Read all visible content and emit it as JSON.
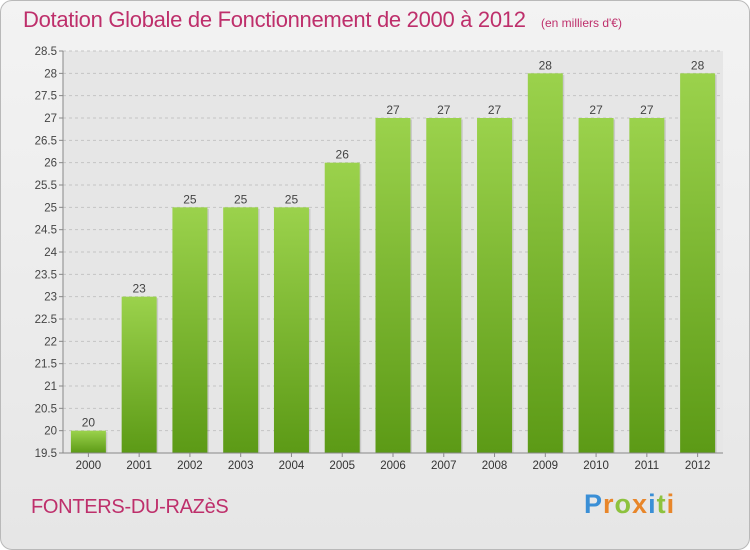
{
  "header": {
    "title": "Dotation Globale de Fonctionnement de 2000 à 2012",
    "unit": "(en milliers d'€)"
  },
  "footer": {
    "city": "FONTERS-DU-RAZèS",
    "logo": {
      "letters": [
        "P",
        "r",
        "o",
        "x",
        "i",
        "t",
        "i"
      ],
      "colors": [
        "#3a8fd6",
        "#e8862a",
        "#8dc23e",
        "#e8862a",
        "#3a8fd6",
        "#8dc23e",
        "#e8862a"
      ]
    }
  },
  "chart_data": {
    "type": "bar",
    "categories": [
      "2000",
      "2001",
      "2002",
      "2003",
      "2004",
      "2005",
      "2006",
      "2007",
      "2008",
      "2009",
      "2010",
      "2011",
      "2012"
    ],
    "values": [
      20,
      23,
      25,
      25,
      25,
      26,
      27,
      27,
      27,
      28,
      27,
      27,
      28
    ],
    "data_labels": [
      "20",
      "23",
      "25",
      "25",
      "25",
      "26",
      "27",
      "27",
      "27",
      "28",
      "27",
      "27",
      "28"
    ],
    "yticks": [
      "19.5",
      "20",
      "20.5",
      "21",
      "21.5",
      "22",
      "22.5",
      "23",
      "23.5",
      "24",
      "24.5",
      "25",
      "25.5",
      "26",
      "26.5",
      "27",
      "27.5",
      "28",
      "28.5"
    ],
    "ylim": [
      19.5,
      28.5
    ],
    "grid": true,
    "bar_color_top": "#9bd24c",
    "bar_color_bottom": "#5c9a16"
  }
}
